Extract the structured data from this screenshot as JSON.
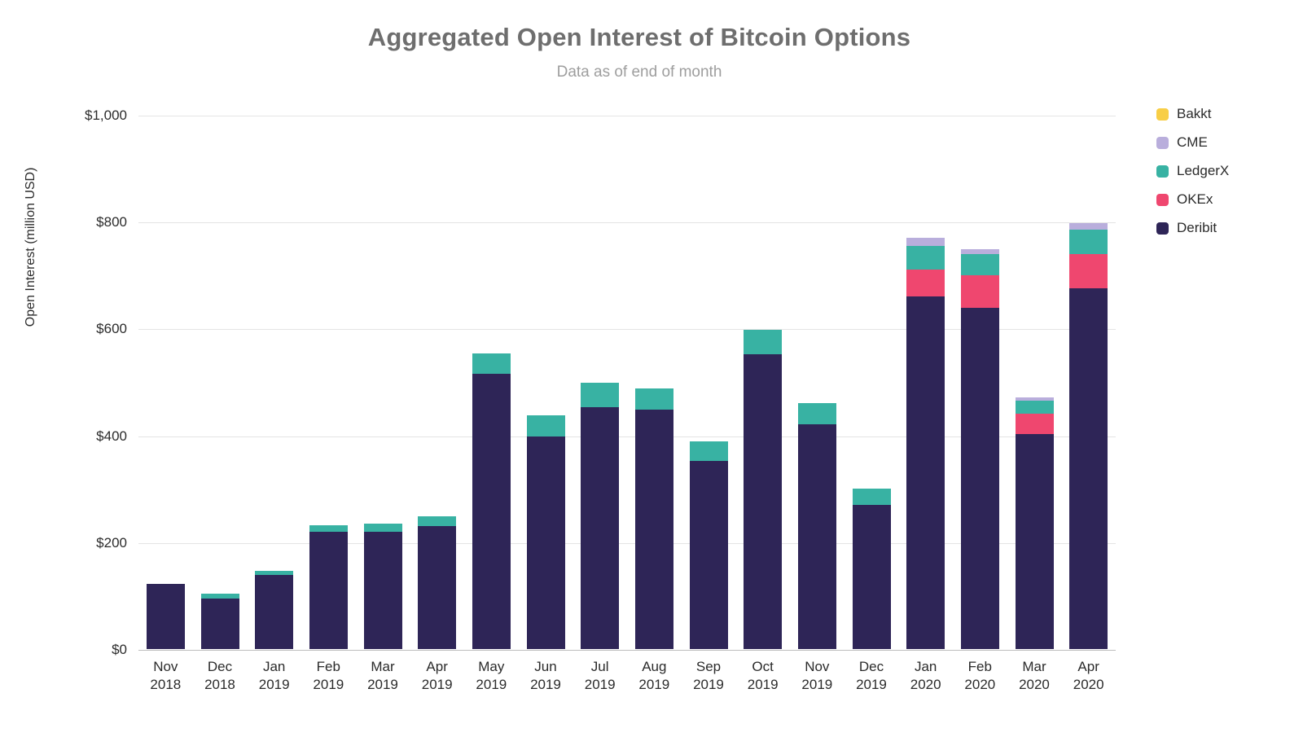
{
  "title": "Aggregated Open Interest of Bitcoin Options",
  "subtitle": "Data as of end of month",
  "ylabel": "Open Interest (million USD)",
  "chart_data": {
    "type": "bar",
    "stacked": true,
    "title": "Aggregated Open Interest of Bitcoin Options",
    "subtitle": "Data as of end of month",
    "xlabel": "",
    "ylabel": "Open Interest (million USD)",
    "ylim": [
      0,
      1000
    ],
    "yticks": [
      0,
      200,
      400,
      600,
      800,
      1000
    ],
    "ytick_labels": [
      "$0",
      "$200",
      "$400",
      "$600",
      "$800",
      "$1,000"
    ],
    "grid": "horizontal",
    "legend_position": "right",
    "legend_order": [
      "Bakkt",
      "CME",
      "LedgerX",
      "OKEx",
      "Deribit"
    ],
    "categories": [
      {
        "month": "Nov",
        "year": "2018"
      },
      {
        "month": "Dec",
        "year": "2018"
      },
      {
        "month": "Jan",
        "year": "2019"
      },
      {
        "month": "Feb",
        "year": "2019"
      },
      {
        "month": "Mar",
        "year": "2019"
      },
      {
        "month": "Apr",
        "year": "2019"
      },
      {
        "month": "May",
        "year": "2019"
      },
      {
        "month": "Jun",
        "year": "2019"
      },
      {
        "month": "Jul",
        "year": "2019"
      },
      {
        "month": "Aug",
        "year": "2019"
      },
      {
        "month": "Sep",
        "year": "2019"
      },
      {
        "month": "Oct",
        "year": "2019"
      },
      {
        "month": "Nov",
        "year": "2019"
      },
      {
        "month": "Dec",
        "year": "2019"
      },
      {
        "month": "Jan",
        "year": "2020"
      },
      {
        "month": "Feb",
        "year": "2020"
      },
      {
        "month": "Mar",
        "year": "2020"
      },
      {
        "month": "Apr",
        "year": "2020"
      }
    ],
    "series": [
      {
        "name": "Deribit",
        "color": "#2e2557",
        "values": [
          122,
          95,
          138,
          220,
          220,
          230,
          515,
          398,
          453,
          448,
          352,
          552,
          420,
          270,
          660,
          638,
          403,
          675
        ]
      },
      {
        "name": "OKEx",
        "color": "#ef476f",
        "values": [
          0,
          0,
          0,
          0,
          0,
          0,
          0,
          0,
          0,
          0,
          0,
          0,
          0,
          0,
          50,
          62,
          38,
          65
        ]
      },
      {
        "name": "LedgerX",
        "color": "#38b2a3",
        "values": [
          0,
          8,
          9,
          12,
          15,
          18,
          38,
          40,
          45,
          40,
          36,
          46,
          40,
          30,
          45,
          40,
          24,
          45
        ]
      },
      {
        "name": "CME",
        "color": "#b9aedc",
        "values": [
          0,
          0,
          0,
          0,
          0,
          0,
          0,
          0,
          0,
          0,
          0,
          0,
          0,
          0,
          15,
          8,
          6,
          13
        ]
      },
      {
        "name": "Bakkt",
        "color": "#f8ce46",
        "values": [
          0,
          0,
          0,
          0,
          0,
          0,
          0,
          0,
          0,
          0,
          0,
          0,
          0,
          0,
          0,
          0,
          0,
          0
        ]
      }
    ]
  }
}
